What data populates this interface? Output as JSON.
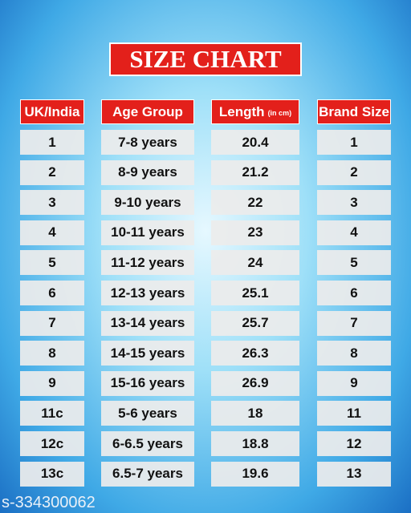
{
  "title": "SIZE CHART",
  "table": {
    "headers": [
      {
        "text": "UK/India"
      },
      {
        "text": "Age Group"
      },
      {
        "text": "Length",
        "note": "(in cm)"
      },
      {
        "text": "Brand Size"
      }
    ],
    "rows": [
      [
        "1",
        "7-8 years",
        "20.4",
        "1"
      ],
      [
        "2",
        "8-9 years",
        "21.2",
        "2"
      ],
      [
        "3",
        "9-10 years",
        "22",
        "3"
      ],
      [
        "4",
        "10-11 years",
        "23",
        "4"
      ],
      [
        "5",
        "11-12 years",
        "24",
        "5"
      ],
      [
        "6",
        "12-13 years",
        "25.1",
        "6"
      ],
      [
        "7",
        "13-14 years",
        "25.7",
        "7"
      ],
      [
        "8",
        "14-15 years",
        "26.3",
        "8"
      ],
      [
        "9",
        "15-16 years",
        "26.9",
        "9"
      ],
      [
        "11c",
        "5-6 years",
        "18",
        "11"
      ],
      [
        "12c",
        "6-6.5 years",
        "18.8",
        "12"
      ],
      [
        "13c",
        "6.5-7 years",
        "19.6",
        "13"
      ]
    ]
  },
  "footer": "s-334300062"
}
